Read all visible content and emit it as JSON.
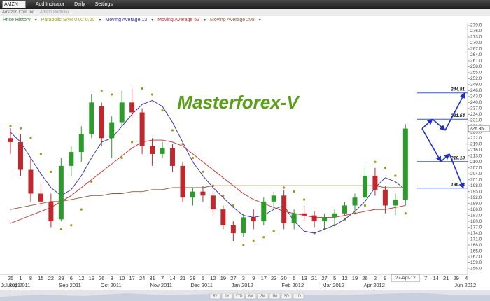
{
  "toolbar": {
    "symbol": "AMZN",
    "add_indicator": "Add Indicator",
    "interval": "Daily",
    "settings": "Settings"
  },
  "subheader": {
    "company": "Amazon.Com Inc",
    "add_to_portfolio": "Add to Portfolio"
  },
  "chart_data": {
    "type": "candlestick",
    "title": "Masterforex-V",
    "price_name": "Price History",
    "price_color": "#2a7a2a",
    "up_color": "#2e9a2e",
    "down_color": "#c0282d",
    "x": [
      "25",
      "1",
      "8",
      "15",
      "22",
      "29",
      "6",
      "12",
      "19",
      "26",
      "3",
      "10",
      "17",
      "24",
      "31",
      "7",
      "14",
      "21",
      "28",
      "5",
      "12",
      "19",
      "27",
      "3",
      "9",
      "17",
      "23",
      "30",
      "6",
      "13",
      "21",
      "27",
      "5",
      "12",
      "19",
      "26",
      "2",
      "9",
      null,
      null,
      null,
      "7",
      "14",
      "21",
      "29",
      "4"
    ],
    "month_labels": [
      "Jul 2011",
      "Aug 2011",
      null,
      null,
      null,
      null,
      "Sep 2011",
      null,
      null,
      null,
      "Oct 2011",
      null,
      null,
      null,
      null,
      "Nov 2011",
      null,
      null,
      null,
      "Dec 2011",
      null,
      null,
      null,
      "Jan 2012",
      null,
      null,
      null,
      null,
      "Feb 2012",
      null,
      null,
      null,
      "Mar 2012",
      null,
      null,
      null,
      "Apr 2012",
      null,
      null,
      null,
      null,
      null,
      null,
      null,
      null,
      "Jun 2012"
    ],
    "open": [
      222,
      220,
      206,
      194,
      190,
      181,
      208,
      215,
      224,
      238,
      222,
      230,
      240,
      235,
      218,
      214,
      217,
      208,
      192,
      195,
      193,
      186,
      178,
      174,
      182,
      180,
      190,
      193,
      179,
      184,
      183,
      180,
      182,
      184,
      188,
      192,
      203,
      196,
      188,
      191,
      null,
      null,
      null,
      null,
      null,
      null
    ],
    "high": [
      227,
      224,
      212,
      199,
      194,
      212,
      218,
      228,
      244,
      240,
      233,
      246,
      247,
      237,
      222,
      220,
      219,
      210,
      197,
      198,
      195,
      188,
      180,
      184,
      186,
      192,
      195,
      196,
      186,
      188,
      185,
      184,
      186,
      190,
      194,
      208,
      207,
      198,
      194,
      229,
      null,
      null,
      null,
      null,
      null,
      null
    ],
    "low": [
      214,
      203,
      190,
      188,
      177,
      180,
      203,
      210,
      222,
      218,
      212,
      228,
      232,
      214,
      208,
      212,
      205,
      190,
      188,
      190,
      183,
      176,
      170,
      172,
      176,
      178,
      186,
      176,
      176,
      180,
      177,
      176,
      178,
      183,
      185,
      190,
      193,
      184,
      183,
      188,
      null,
      null,
      null,
      null,
      null,
      null
    ],
    "close": [
      220,
      206,
      194,
      190,
      180,
      208,
      215,
      224,
      240,
      222,
      230,
      240,
      235,
      218,
      214,
      217,
      208,
      192,
      195,
      193,
      186,
      178,
      174,
      182,
      180,
      190,
      193,
      179,
      184,
      183,
      180,
      182,
      184,
      188,
      192,
      203,
      196,
      188,
      191,
      226.85,
      null,
      null,
      null,
      null,
      null,
      null
    ],
    "series": [
      {
        "name": "Parabolic SAR 0.02 0.20",
        "color": "#9a9a1a",
        "style": "dots",
        "values": [
          228,
          227,
          222,
          214,
          205,
          176,
          178,
          186,
          200,
          246,
          244,
          212,
          220,
          247,
          244,
          236,
          226,
          219,
          212,
          205,
          198,
          193,
          188,
          168,
          170,
          172,
          175,
          197,
          195,
          191,
          174,
          176,
          178,
          181,
          184,
          188,
          210,
          207,
          203,
          184,
          null,
          null,
          null,
          null,
          null,
          null
        ]
      },
      {
        "name": "Moving Average 13",
        "color": "#2a2aa0",
        "style": "line",
        "values": [
          225,
          220,
          212,
          204,
          197,
          193,
          196,
          203,
          212,
          220,
          222,
          228,
          234,
          239,
          241,
          238,
          230,
          220,
          210,
          203,
          197,
          192,
          187,
          183,
          182,
          183,
          186,
          188,
          180,
          175,
          174,
          176,
          178,
          181,
          185,
          190,
          197,
          202,
          200,
          196,
          null,
          null,
          null,
          null,
          null,
          null
        ]
      },
      {
        "name": "Moving Average 52",
        "color": "#c03030",
        "style": "line",
        "values": [
          179,
          181,
          183,
          185,
          187,
          190,
          193,
          197,
          201,
          205,
          209,
          213,
          217,
          220,
          221,
          221,
          220,
          218,
          214,
          210,
          206,
          202,
          198,
          194,
          191,
          189,
          187,
          185,
          184,
          183,
          182,
          182,
          182,
          183,
          184,
          185,
          186,
          186,
          187,
          188,
          null,
          null,
          null,
          null,
          null,
          null
        ]
      },
      {
        "name": "Moving Average 208",
        "color": "#8a5a3a",
        "style": "line",
        "values": [
          186,
          187,
          188,
          189,
          190,
          190,
          191,
          192,
          193,
          193,
          194,
          194,
          195,
          195,
          196,
          196,
          197,
          197,
          197,
          197,
          198,
          198,
          198,
          198,
          198,
          198,
          198,
          198,
          198,
          198,
          198,
          198,
          198,
          198,
          198,
          198,
          198,
          197,
          197,
          197,
          null,
          null,
          null,
          null,
          null,
          null
        ]
      }
    ],
    "ylim": [
      156,
      279
    ],
    "yticks": [
      {
        "value": 279,
        "label": "279.0"
      },
      {
        "value": 276,
        "label": "276.0"
      },
      {
        "value": 273,
        "label": "273.0"
      },
      {
        "value": 270,
        "label": "270.0"
      },
      {
        "value": 267,
        "label": "267.0"
      },
      {
        "value": 264,
        "label": "264.0"
      },
      {
        "value": 261,
        "label": "261.0"
      },
      {
        "value": 258,
        "label": "258.0"
      },
      {
        "value": 255,
        "label": "255.0"
      },
      {
        "value": 252,
        "label": "252.0"
      },
      {
        "value": 249,
        "label": "249.0"
      },
      {
        "value": 246,
        "label": "246.0"
      },
      {
        "value": 243,
        "label": "243.0"
      },
      {
        "value": 240,
        "label": "240.0"
      },
      {
        "value": 237,
        "label": "237.0"
      },
      {
        "value": 234,
        "label": "234.0"
      },
      {
        "value": 231,
        "label": "231.0"
      },
      {
        "value": 228,
        "label": "228.0"
      },
      {
        "value": 225,
        "label": "225.0"
      },
      {
        "value": 222,
        "label": "222.0"
      },
      {
        "value": 219,
        "label": "219.0"
      },
      {
        "value": 216,
        "label": "216.0"
      },
      {
        "value": 213,
        "label": "213.0"
      },
      {
        "value": 210,
        "label": "210.0"
      },
      {
        "value": 207,
        "label": "207.0"
      },
      {
        "value": 204,
        "label": "204.0"
      },
      {
        "value": 201,
        "label": "201.0"
      },
      {
        "value": 198,
        "label": "198.0"
      },
      {
        "value": 195,
        "label": "195.0"
      },
      {
        "value": 192,
        "label": "192.0"
      },
      {
        "value": 189,
        "label": "189.0"
      },
      {
        "value": 186,
        "label": "186.0"
      },
      {
        "value": 183,
        "label": "183.0"
      },
      {
        "value": 180,
        "label": "180.0"
      },
      {
        "value": 177,
        "label": "177.0"
      },
      {
        "value": 174,
        "label": "174.0"
      },
      {
        "value": 171,
        "label": "171.0"
      },
      {
        "value": 168,
        "label": "168.0"
      },
      {
        "value": 165,
        "label": "165.0"
      },
      {
        "value": 162,
        "label": "162.0"
      },
      {
        "value": 159,
        "label": "159.0"
      },
      {
        "value": 156,
        "label": "156.0"
      }
    ],
    "grid": false,
    "last_price": 226.85,
    "date_marker": "27-Apr-12",
    "levels": [
      244.81,
      231.54,
      210.18,
      196.74
    ],
    "level_color": "#3355dd",
    "forecast": [
      {
        "values": [
          226.85,
          231.54,
          226,
          244.81
        ]
      },
      {
        "values": [
          226.85,
          210.18,
          214,
          196.74
        ]
      }
    ],
    "forecast_color": "#1f2fc8",
    "range_buttons": [
      "5Y",
      "1Y",
      "YTD",
      "6M",
      "3M",
      "1M",
      "5D",
      "1D"
    ]
  }
}
